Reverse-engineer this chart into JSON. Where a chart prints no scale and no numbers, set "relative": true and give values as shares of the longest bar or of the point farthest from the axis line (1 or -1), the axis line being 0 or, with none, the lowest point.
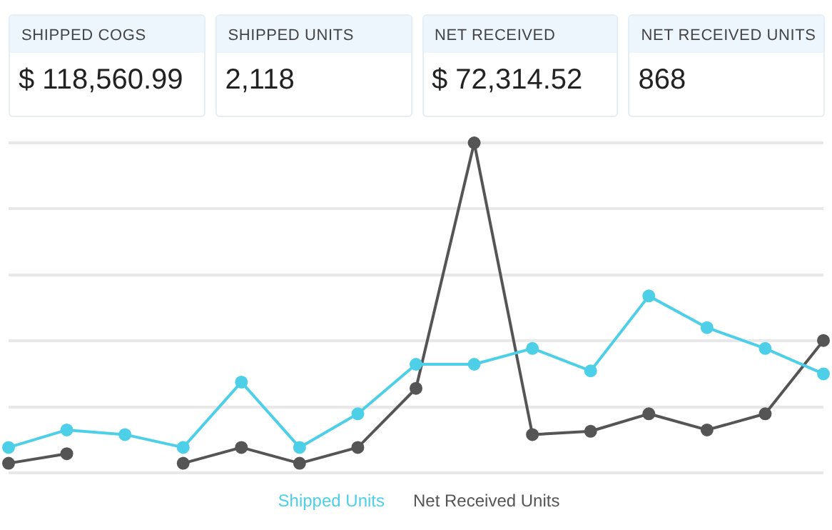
{
  "chart_data": [
    {
      "type": "other",
      "annotations": [
        "SHIPPED COGS",
        "$ 118,560.99",
        "SHIPPED UNITS",
        "2,118",
        "NET RECEIVED",
        "$ 72,314.52",
        "NET RECEIVED UNITS",
        "868"
      ]
    },
    {
      "type": "line",
      "relative": true,
      "categories": [
        null,
        null,
        null,
        null,
        null,
        null,
        null,
        null,
        null,
        null,
        null,
        null,
        null,
        null,
        null
      ],
      "series": [
        {
          "name": "Shipped Units",
          "color": "#4dcfe8",
          "values": [
            0.077,
            0.13,
            0.116,
            0.077,
            0.275,
            0.077,
            0.179,
            0.329,
            0.329,
            0.377,
            0.309,
            0.536,
            0.44,
            0.377,
            0.3
          ]
        },
        {
          "name": "Net Received Units",
          "color": "#555555",
          "values": [
            0.029,
            0.058,
            null,
            0.029,
            0.077,
            0.029,
            0.077,
            0.256,
            1,
            0.116,
            0.126,
            0.179,
            0.13,
            0.179,
            0.401
          ]
        }
      ],
      "grid": "y",
      "legend": "bottom",
      "marker": "circle",
      "line_style": "solid"
    }
  ]
}
